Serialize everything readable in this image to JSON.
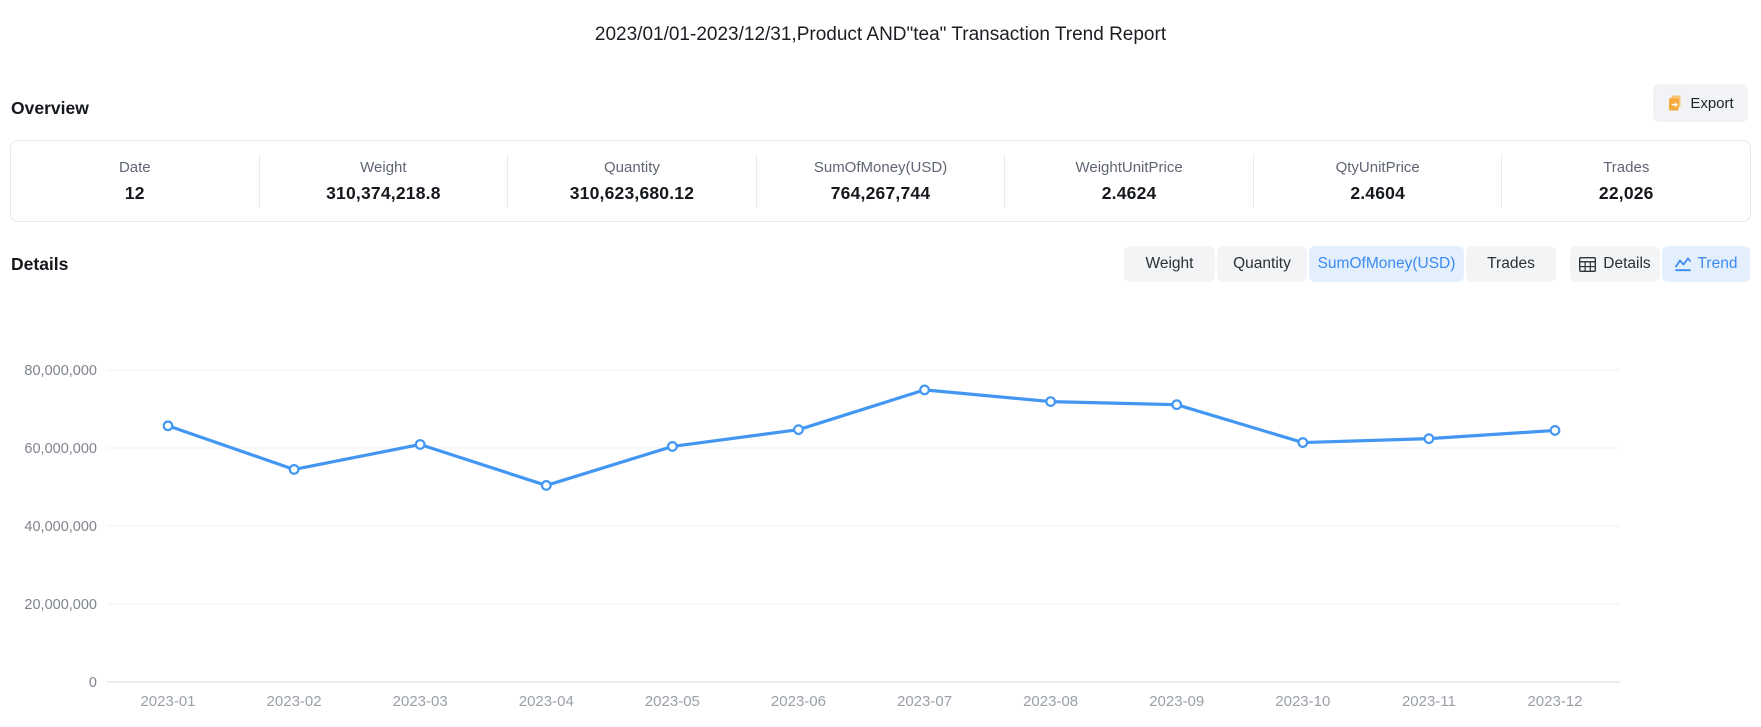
{
  "report": {
    "title": "2023/01/01-2023/12/31,Product AND\"tea\" Transaction Trend Report"
  },
  "overview": {
    "heading": "Overview",
    "export_label": "Export",
    "stats": [
      {
        "label": "Date",
        "value": "12"
      },
      {
        "label": "Weight",
        "value": "310,374,218.8"
      },
      {
        "label": "Quantity",
        "value": "310,623,680.12"
      },
      {
        "label": "SumOfMoney(USD)",
        "value": "764,267,744"
      },
      {
        "label": "WeightUnitPrice",
        "value": "2.4624"
      },
      {
        "label": "QtyUnitPrice",
        "value": "2.4604"
      },
      {
        "label": "Trades",
        "value": "22,026"
      }
    ]
  },
  "details": {
    "heading": "Details",
    "metric_tabs": [
      {
        "label": "Weight",
        "active": false
      },
      {
        "label": "Quantity",
        "active": false
      },
      {
        "label": "SumOfMoney(USD)",
        "active": true
      },
      {
        "label": "Trades",
        "active": false
      }
    ],
    "view_tabs": [
      {
        "label": "Details",
        "icon": "table-icon",
        "active": false
      },
      {
        "label": "Trend",
        "icon": "trend-icon",
        "active": true
      }
    ]
  },
  "chart_data": {
    "type": "line",
    "title": "",
    "xlabel": "",
    "ylabel": "",
    "categories": [
      "2023-01",
      "2023-02",
      "2023-03",
      "2023-04",
      "2023-05",
      "2023-06",
      "2023-07",
      "2023-08",
      "2023-09",
      "2023-10",
      "2023-11",
      "2023-12"
    ],
    "series": [
      {
        "name": "SumOfMoney(USD)",
        "values": [
          65700000,
          54500000,
          60900000,
          50400000,
          60400000,
          64700000,
          74900000,
          71900000,
          71100000,
          61400000,
          62400000,
          64500000
        ]
      }
    ],
    "ylim": [
      0,
      80000000
    ],
    "yticks": [
      0,
      20000000,
      40000000,
      60000000,
      80000000
    ],
    "grid": true,
    "legend": "none",
    "line_color": "#4397f3",
    "point_style": "hollow-circle"
  },
  "colors": {
    "accent_blue": "#3b8cf0",
    "active_tab_bg": "#e4effd",
    "tab_bg": "#f3f4f6",
    "export_icon_orange": "#f7a93c",
    "export_icon_orange_light": "#f9c571",
    "grid_line": "#eef0f4",
    "axis_line": "#d7dade",
    "y_tick_label": "#7e838e",
    "x_tick_label": "#9aa0a8"
  }
}
